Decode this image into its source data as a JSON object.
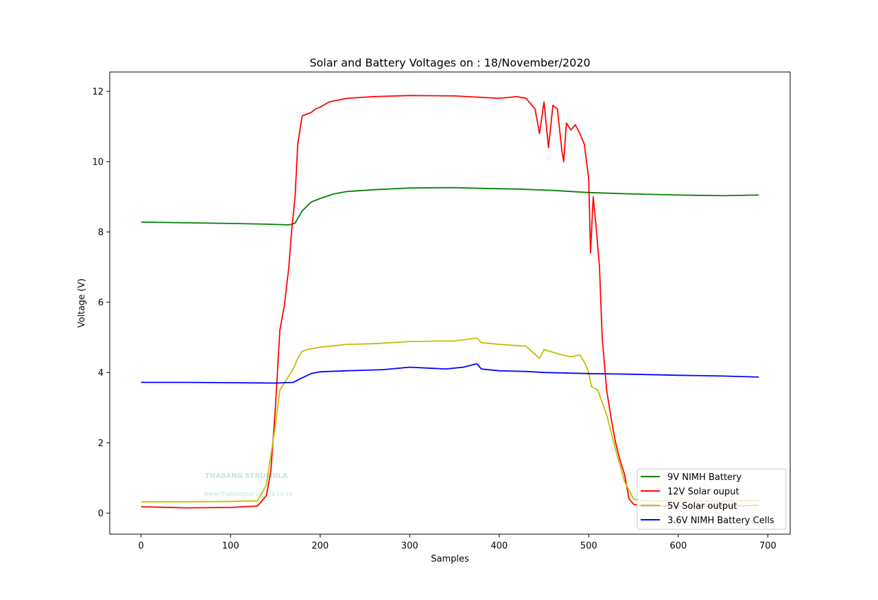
{
  "chart_data": {
    "type": "line",
    "title": "Solar and Battery Voltages on : 18/November/2020",
    "xlabel": "Samples",
    "ylabel": "Voltage (V)",
    "xlim": [
      -35,
      725
    ],
    "ylim": [
      -0.6,
      12.55
    ],
    "xticks": [
      0,
      100,
      200,
      300,
      400,
      500,
      600,
      700
    ],
    "yticks": [
      0,
      2,
      4,
      6,
      8,
      10,
      12
    ],
    "grid": false,
    "legend_position": "bottom-right",
    "watermark": {
      "name": "THABANG SERUMULA",
      "url": "www.thabangserumula.co.za"
    },
    "series": [
      {
        "name": "9V NIMH Battery",
        "color": "#008000",
        "x": [
          0,
          50,
          100,
          140,
          165,
          172,
          180,
          190,
          200,
          215,
          230,
          260,
          300,
          350,
          380,
          420,
          460,
          500,
          550,
          600,
          650,
          690
        ],
        "y": [
          8.28,
          8.26,
          8.24,
          8.22,
          8.2,
          8.25,
          8.6,
          8.85,
          8.95,
          9.08,
          9.15,
          9.2,
          9.25,
          9.26,
          9.24,
          9.22,
          9.18,
          9.12,
          9.08,
          9.05,
          9.03,
          9.05
        ]
      },
      {
        "name": "12V Solar ouput",
        "color": "#ff0000",
        "x": [
          0,
          50,
          100,
          130,
          140,
          145,
          150,
          155,
          160,
          165,
          168,
          172,
          175,
          178,
          180,
          185,
          190,
          195,
          200,
          210,
          230,
          260,
          300,
          350,
          400,
          420,
          430,
          440,
          445,
          450,
          455,
          460,
          465,
          470,
          472,
          475,
          480,
          485,
          490,
          495,
          500,
          502,
          505,
          508,
          512,
          515,
          520,
          525,
          530,
          535,
          540,
          545,
          550,
          560,
          600,
          650,
          690
        ],
        "y": [
          0.18,
          0.15,
          0.16,
          0.2,
          0.5,
          1.2,
          3.0,
          5.2,
          5.9,
          7.0,
          8.0,
          9.0,
          10.5,
          11.0,
          11.3,
          11.35,
          11.4,
          11.5,
          11.55,
          11.7,
          11.8,
          11.85,
          11.88,
          11.87,
          11.8,
          11.85,
          11.8,
          11.5,
          10.8,
          11.7,
          10.4,
          11.6,
          11.5,
          10.3,
          10.0,
          11.1,
          10.9,
          11.05,
          10.8,
          10.5,
          9.5,
          7.4,
          9.0,
          8.2,
          7.0,
          5.0,
          3.5,
          2.7,
          2.0,
          1.5,
          1.1,
          0.4,
          0.25,
          0.2,
          0.2,
          0.2,
          0.22
        ]
      },
      {
        "name": "5V Solar output",
        "color": "#bfbf00",
        "x": [
          0,
          50,
          100,
          130,
          140,
          150,
          155,
          160,
          170,
          175,
          180,
          185,
          200,
          230,
          260,
          300,
          350,
          375,
          380,
          400,
          430,
          445,
          450,
          470,
          480,
          490,
          495,
          500,
          503,
          510,
          520,
          530,
          540,
          550,
          560,
          600,
          650,
          690
        ],
        "y": [
          0.32,
          0.32,
          0.33,
          0.35,
          0.8,
          2.5,
          3.5,
          3.7,
          4.1,
          4.4,
          4.6,
          4.65,
          4.72,
          4.8,
          4.82,
          4.88,
          4.9,
          4.98,
          4.85,
          4.8,
          4.75,
          4.4,
          4.65,
          4.5,
          4.45,
          4.5,
          4.3,
          4.0,
          3.6,
          3.5,
          2.8,
          1.8,
          0.9,
          0.4,
          0.35,
          0.35,
          0.34,
          0.36
        ]
      },
      {
        "name": "3.6V NIMH Battery Cells",
        "color": "#0000ff",
        "x": [
          0,
          50,
          100,
          150,
          170,
          180,
          190,
          200,
          230,
          270,
          300,
          340,
          360,
          375,
          380,
          400,
          430,
          450,
          500,
          550,
          600,
          650,
          690
        ],
        "y": [
          3.72,
          3.72,
          3.71,
          3.7,
          3.72,
          3.85,
          3.97,
          4.02,
          4.05,
          4.08,
          4.15,
          4.1,
          4.15,
          4.25,
          4.1,
          4.05,
          4.03,
          4.0,
          3.97,
          3.95,
          3.92,
          3.9,
          3.87
        ]
      }
    ]
  }
}
